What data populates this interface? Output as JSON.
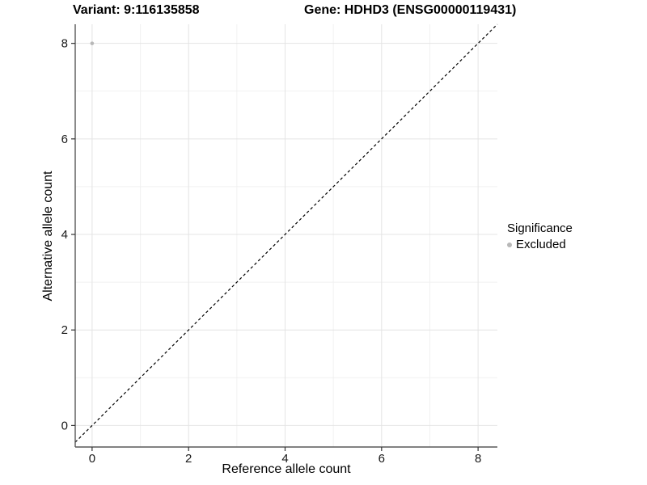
{
  "header": {
    "title_left": "Variant: 9:116135858",
    "title_right": "Gene: HDHD3 (ENSG00000119431)"
  },
  "axes": {
    "x_title": "Reference allele count",
    "y_title": "Alternative allele count"
  },
  "legend": {
    "title": "Significance",
    "items": [
      {
        "label": "Excluded",
        "color": "#b8b8b8"
      }
    ]
  },
  "chart_data": {
    "type": "scatter",
    "title": "Variant: 9:116135858 | Gene: HDHD3 (ENSG00000119431)",
    "xlabel": "Reference allele count",
    "ylabel": "Alternative allele count",
    "xlim": [
      -0.35,
      8.4
    ],
    "ylim": [
      -0.45,
      8.4
    ],
    "xticks": [
      0,
      2,
      4,
      6,
      8
    ],
    "yticks": [
      0,
      2,
      4,
      6,
      8
    ],
    "minor_xticks": [
      1,
      3,
      5,
      7
    ],
    "minor_yticks": [
      1,
      3,
      5,
      7
    ],
    "grid": "major+minor",
    "legend_position": "right",
    "series": [
      {
        "name": "Excluded",
        "color": "#b8b8b8",
        "points": [
          {
            "x": 0,
            "y": 8
          }
        ]
      }
    ],
    "reference_line": {
      "kind": "identity y=x",
      "style": "dashed",
      "color": "#000000"
    }
  },
  "colors": {
    "background": "#ffffff",
    "grid_major": "#e4e4e4",
    "grid_minor": "#f1f1f1",
    "axis_line": "#595959",
    "tick_mark": "#333333",
    "tick_label": "#1a1a1a",
    "point": "#b8b8b8"
  }
}
